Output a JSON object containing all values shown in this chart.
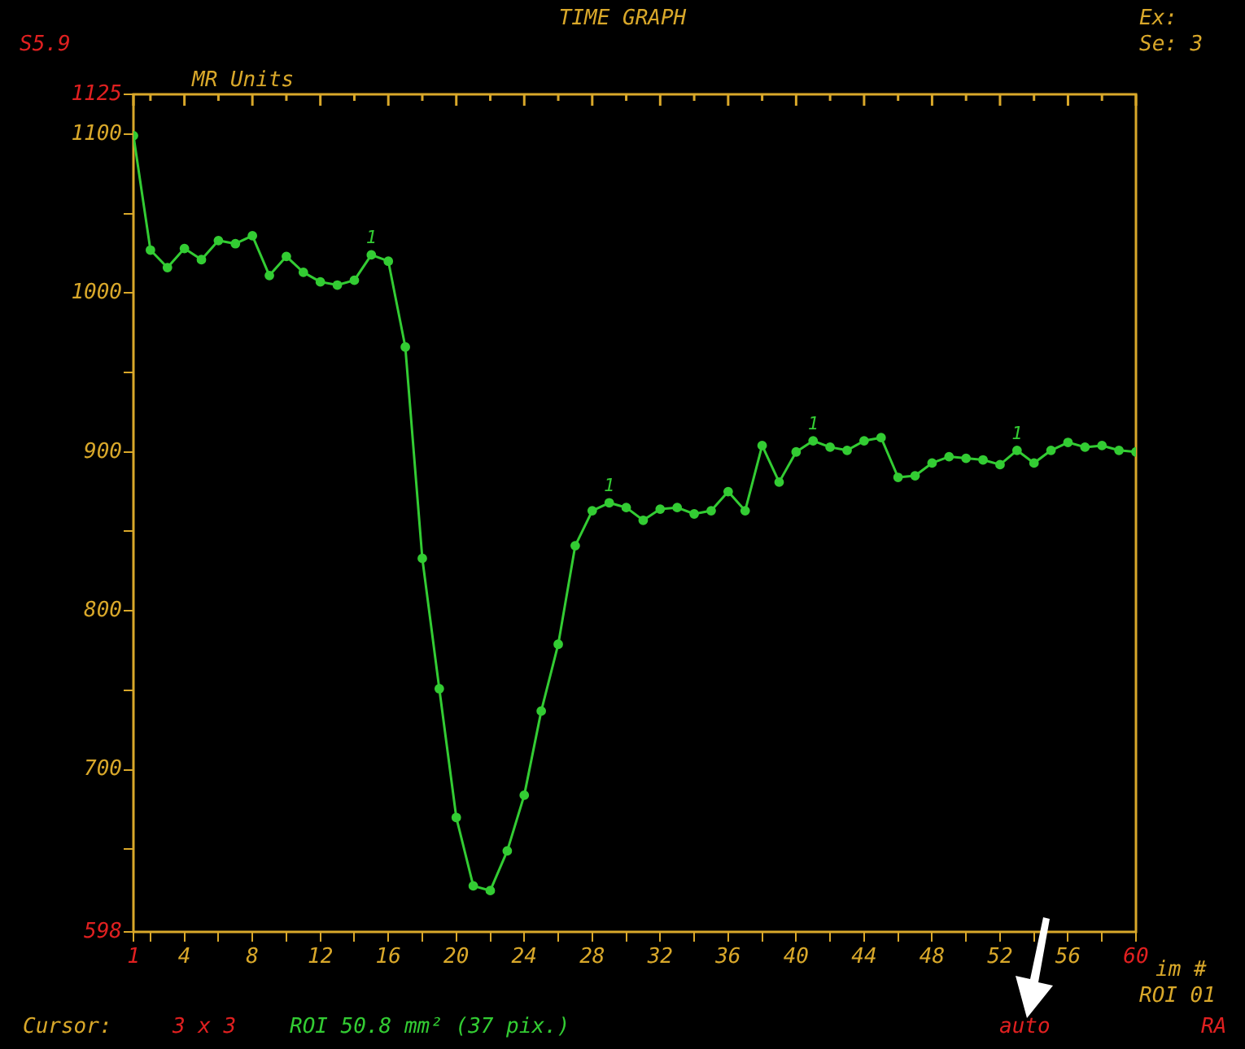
{
  "chart_data": {
    "type": "line",
    "title": "TIME GRAPH",
    "ylabel": "MR Units",
    "xlabel": "im #",
    "x": [
      1,
      2,
      3,
      4,
      5,
      6,
      7,
      8,
      9,
      10,
      11,
      12,
      13,
      14,
      15,
      16,
      17,
      18,
      19,
      20,
      21,
      22,
      23,
      24,
      25,
      26,
      27,
      28,
      29,
      30,
      31,
      32,
      33,
      34,
      35,
      36,
      37,
      38,
      39,
      40,
      41,
      42,
      43,
      44,
      45,
      46,
      47,
      48,
      49,
      50,
      51,
      52,
      53,
      54,
      55,
      56,
      57,
      58,
      59,
      60
    ],
    "series": [
      {
        "color": "#33cc33",
        "values": [
          1099,
          1027,
          1016,
          1028,
          1021,
          1033,
          1031,
          1036,
          1011,
          1023,
          1013,
          1007,
          1005,
          1008,
          1024,
          1020,
          966,
          833,
          751,
          670,
          627,
          624,
          649,
          684,
          737,
          779,
          841,
          863,
          868,
          865,
          857,
          864,
          865,
          861,
          863,
          875,
          863,
          904,
          881,
          900,
          907,
          903,
          901,
          907,
          909,
          884,
          885,
          893,
          897,
          896,
          895,
          892,
          901,
          893,
          901,
          906,
          903,
          904,
          901,
          900
        ]
      }
    ],
    "xlim": [
      1,
      60
    ],
    "ylim": [
      598,
      1125
    ],
    "xticks": [
      1,
      {
        "value": 2,
        "label": null
      },
      4,
      {
        "value": 6,
        "label": null
      },
      8,
      {
        "value": 10,
        "label": null
      },
      12,
      {
        "value": 14,
        "label": null
      },
      16,
      {
        "value": 18,
        "label": null
      },
      20,
      {
        "value": 22,
        "label": null
      },
      24,
      {
        "value": 26,
        "label": null
      },
      28,
      {
        "value": 30,
        "label": null
      },
      32,
      {
        "value": 34,
        "label": null
      },
      36,
      {
        "value": 38,
        "label": null
      },
      40,
      {
        "value": 42,
        "label": null
      },
      44,
      {
        "value": 46,
        "label": null
      },
      48,
      {
        "value": 50,
        "label": null
      },
      52,
      {
        "value": 54,
        "label": null
      },
      56,
      {
        "value": 58,
        "label": null
      },
      60
    ],
    "yticks": [
      598,
      {
        "value": 650,
        "label": null
      },
      700,
      {
        "value": 750,
        "label": null
      },
      800,
      {
        "value": 850,
        "label": null
      },
      900,
      {
        "value": 950,
        "label": null
      },
      1000,
      {
        "value": 1050,
        "label": null
      },
      1100,
      1125
    ],
    "grid": false,
    "legend": false,
    "marker": "circle",
    "line_style": "solid",
    "annotations": [
      "S5.9",
      "Ex:",
      "Se: 3",
      "Cursor:",
      "3 x 3",
      "ROI 50.8 mm² (37 pix.)",
      "auto",
      "ROI 01",
      "RA",
      {
        "text": "1",
        "x": 15,
        "y": 1024
      },
      {
        "text": "1",
        "x": 29,
        "y": 868
      },
      {
        "text": "1",
        "x": 41,
        "y": 907
      },
      {
        "text": "1",
        "x": 53,
        "y": 901
      }
    ]
  }
}
